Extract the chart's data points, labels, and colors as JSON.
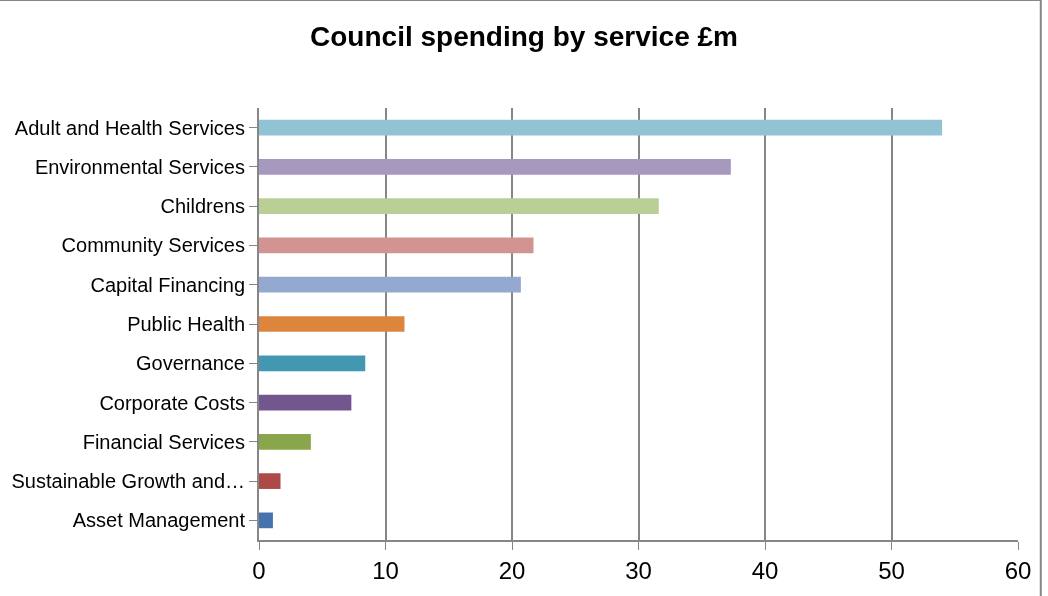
{
  "chart_data": {
    "type": "bar",
    "orientation": "horizontal",
    "title": "Council spending by service £m",
    "categories": [
      "Adult and Health Services",
      "Environmental Services",
      "Childrens",
      "Community Services",
      "Capital Financing",
      "Public Health",
      "Governance",
      "Corporate Costs",
      "Financial Services",
      "Sustainable Growth and…",
      "Asset Management"
    ],
    "values": [
      54.0,
      37.3,
      31.6,
      21.7,
      20.7,
      11.5,
      8.4,
      7.3,
      4.1,
      1.7,
      1.1
    ],
    "colors": [
      "#92c3d5",
      "#a699bd",
      "#b9cf96",
      "#d39391",
      "#93a9d0",
      "#dd853d",
      "#4298b0",
      "#72578e",
      "#8aa64c",
      "#ad4a47",
      "#4673ab"
    ],
    "xlim": [
      0,
      60
    ],
    "xticks": [
      0,
      10,
      20,
      30,
      40,
      50,
      60
    ],
    "grid": "x",
    "legend": false
  }
}
